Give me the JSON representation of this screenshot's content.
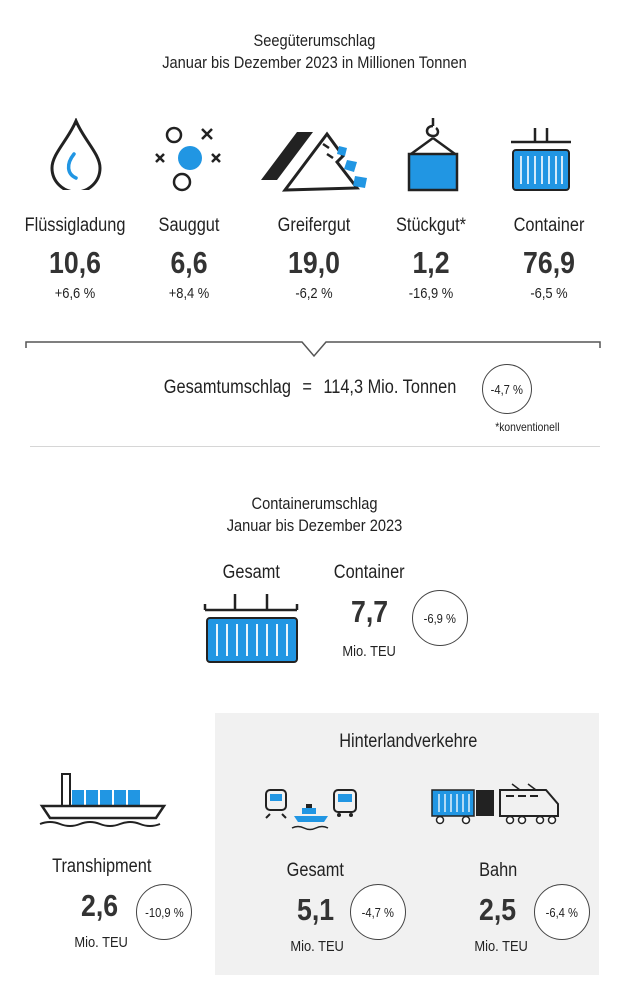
{
  "seagoods": {
    "title_line1": "Seegüterumschlag",
    "title_line2": "Januar bis Dezember 2023 in Millionen Tonnen",
    "categories": [
      {
        "name": "Flüssigladung",
        "value": "10,6",
        "change": "+6,6 %",
        "icon": "droplet-icon"
      },
      {
        "name": "Sauggut",
        "value": "6,6",
        "change": "+8,4 %",
        "icon": "bulk-particles-icon"
      },
      {
        "name": "Greifergut",
        "value": "19,0",
        "change": "-6,2 %",
        "icon": "bulk-heap-icon"
      },
      {
        "name": "Stückgut*",
        "value": "1,2",
        "change": "-16,9 %",
        "icon": "crane-cargo-icon"
      },
      {
        "name": "Container",
        "value": "76,9",
        "change": "-6,5 %",
        "icon": "container-icon"
      }
    ],
    "total_label": "Gesamtumschlag",
    "total_equals": "=",
    "total_value": "114,3 Mio. Tonnen",
    "total_change": "-4,7 %",
    "footnote": "*konventionell"
  },
  "container_section": {
    "title_line1": "Containerumschlag",
    "title_line2": "Januar bis Dezember 2023",
    "total": {
      "label": "Gesamt",
      "sublabel": "Container",
      "value": "7,7",
      "unit": "Mio. TEU",
      "change": "-6,9 %"
    },
    "transhipment": {
      "label": "Transhipment",
      "value": "2,6",
      "unit": "Mio. TEU",
      "change": "-10,9 %"
    },
    "hinterland": {
      "title": "Hinterlandverkehre",
      "total": {
        "label": "Gesamt",
        "value": "5,1",
        "unit": "Mio. TEU",
        "change": "-4,7 %"
      },
      "rail": {
        "label": "Bahn",
        "value": "2,5",
        "unit": "Mio. TEU",
        "change": "-6,4 %"
      }
    }
  },
  "colors": {
    "accent": "#2196e3",
    "text": "#222222",
    "panel": "#f1f1f1"
  }
}
